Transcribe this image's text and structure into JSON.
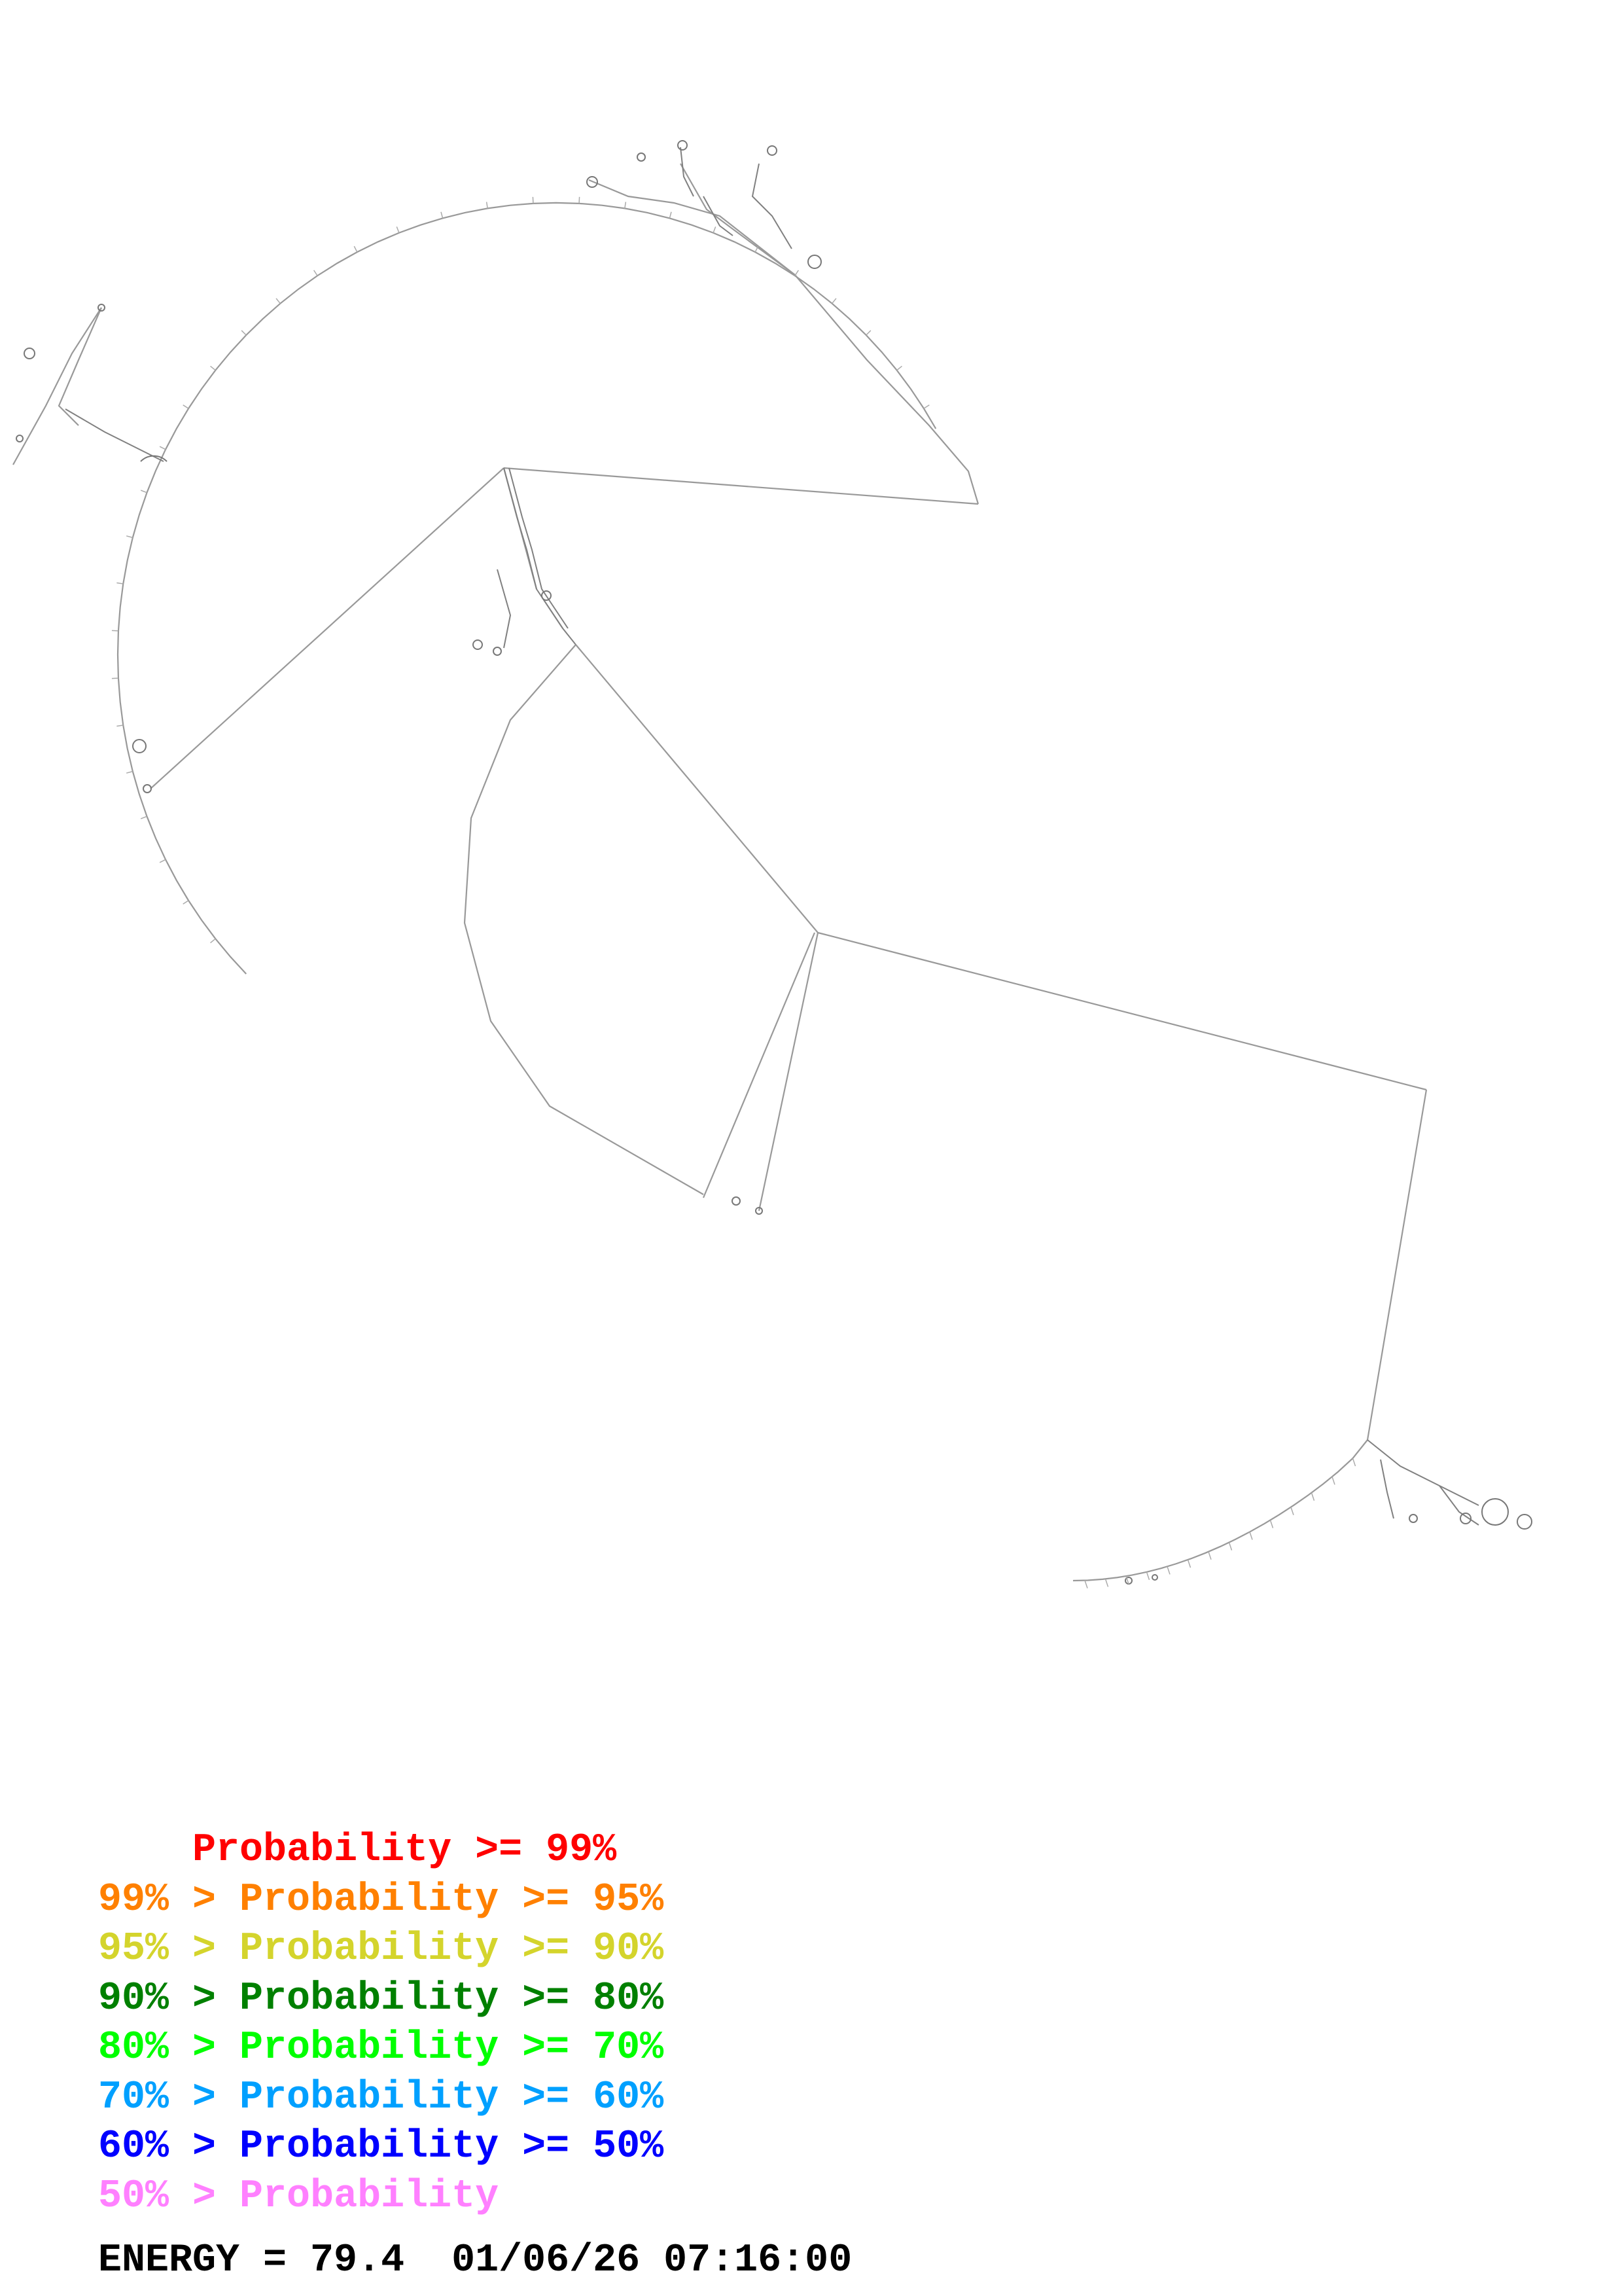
{
  "legend": [
    {
      "prefix": "    ",
      "text": "Probability >= 99%",
      "color": "#ff0000"
    },
    {
      "prefix": "99% > ",
      "text": "Probability >= 95%",
      "color": "#ff8000"
    },
    {
      "prefix": "95% > ",
      "text": "Probability >= 90%",
      "color": "#d4d42c"
    },
    {
      "prefix": "90% > ",
      "text": "Probability >= 80%",
      "color": "#008000"
    },
    {
      "prefix": "80% > ",
      "text": "Probability >= 70%",
      "color": "#00ff00"
    },
    {
      "prefix": "70% > ",
      "text": "Probability >= 60%",
      "color": "#00a0ff"
    },
    {
      "prefix": "60% > ",
      "text": "Probability >= 50%",
      "color": "#0000ff"
    },
    {
      "prefix": "50% > ",
      "text": "Probability",
      "color": "#ff80ff"
    }
  ],
  "energy": {
    "label": "ENERGY = 79.4",
    "timestamp": "01/06/26 07:16:00"
  },
  "colors": {
    "backbone": "#999999",
    "pair_line": "#8a8a8a"
  }
}
